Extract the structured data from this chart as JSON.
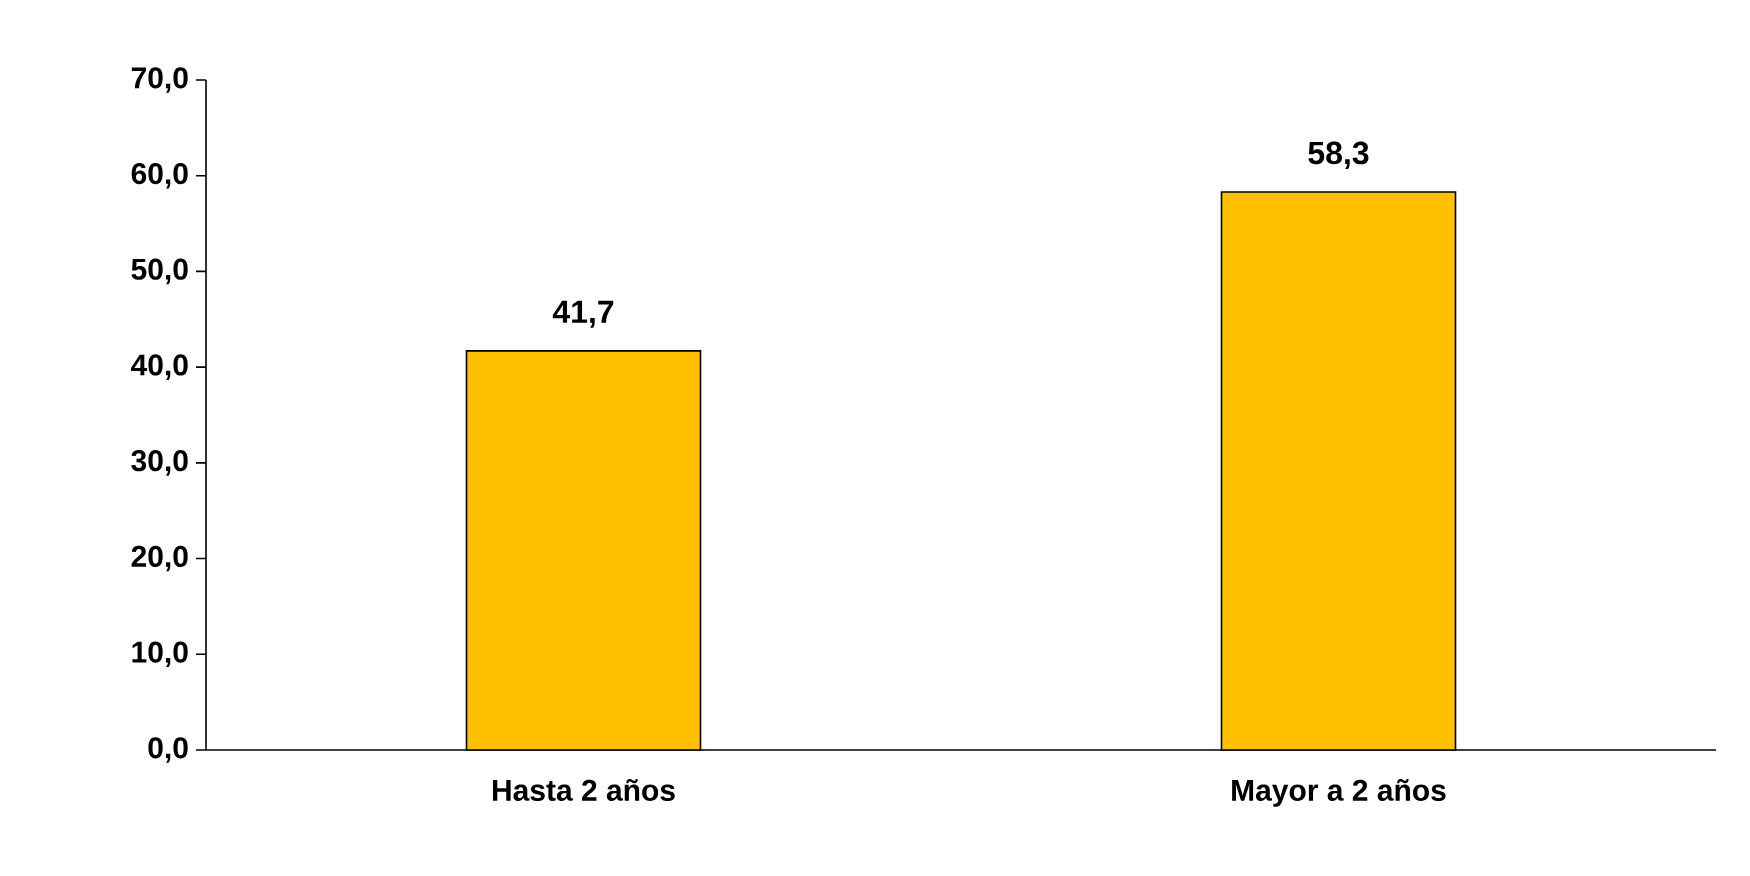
{
  "chart_data": {
    "type": "bar",
    "categories": [
      "Hasta 2 años",
      "Mayor a 2 años"
    ],
    "values": [
      41.7,
      58.3
    ],
    "value_labels": [
      "41,7",
      "58,3"
    ],
    "color": "#ffc000",
    "ylim": [
      0,
      70
    ],
    "yticks": [
      {
        "value": 0,
        "label": "0,0"
      },
      {
        "value": 10,
        "label": "10,0"
      },
      {
        "value": 20,
        "label": "20,0"
      },
      {
        "value": 30,
        "label": "30,0"
      },
      {
        "value": 40,
        "label": "40,0"
      },
      {
        "value": 50,
        "label": "50,0"
      },
      {
        "value": 60,
        "label": "60,0"
      },
      {
        "value": 70,
        "label": "70,0"
      }
    ]
  }
}
